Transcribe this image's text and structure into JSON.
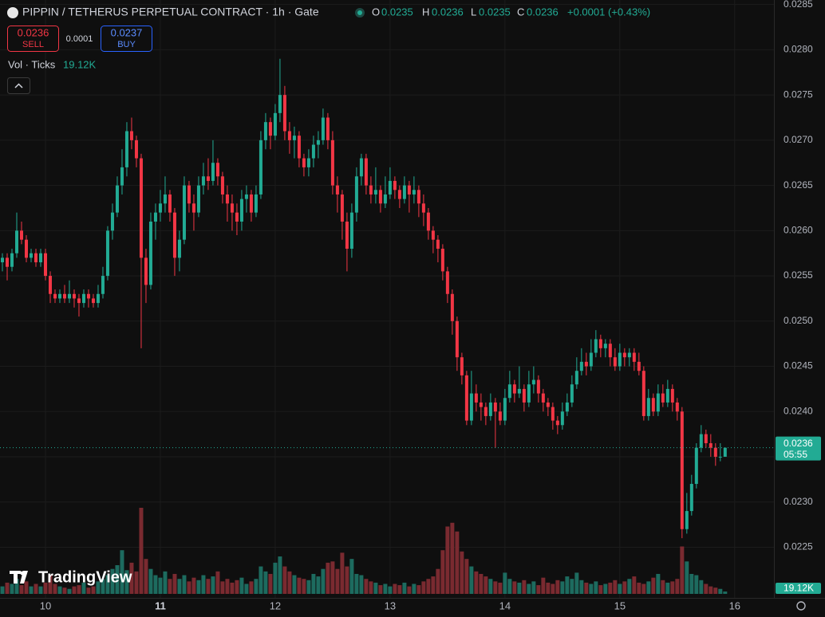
{
  "chart_data": {
    "type": "candlestick",
    "title": "PIPPIN / TETHERUS PERPETUAL CONTRACT · 1h · Gate",
    "header": {
      "o_label": "O",
      "open": "0.0235",
      "h_label": "H",
      "high": "0.0236",
      "l_label": "L",
      "low": "0.0235",
      "c_label": "C",
      "close": "0.0236",
      "change": "+0.0001 (+0.43%)"
    },
    "trade": {
      "sell_price": "0.0236",
      "sell": "SELL",
      "spread": "0.0001",
      "buy_price": "0.0237",
      "buy": "BUY"
    },
    "volume_legend": "Vol · Ticks",
    "volume_label": "19.12K",
    "price_label": "0.0236",
    "countdown": "05:55",
    "watermark": "TradingView",
    "up_color": "#22ab94",
    "down_color": "#f23645",
    "up_volume_color": "#1d6b5f",
    "down_volume_color": "#7a2a30",
    "grid": true,
    "xlim": [
      -0.5,
      161.2
    ],
    "xticks": [
      {
        "value": 9,
        "label": "10"
      },
      {
        "value": 33,
        "label": "11"
      },
      {
        "value": 57,
        "label": "12"
      },
      {
        "value": 81,
        "label": "13"
      },
      {
        "value": 105,
        "label": "14"
      },
      {
        "value": 129,
        "label": "15"
      },
      {
        "value": 153,
        "label": "16"
      }
    ],
    "ylim": [
      0.02194,
      0.02855
    ],
    "yticks": [
      0.0225,
      {
        "value": 0.023,
        "label": "0.0230"
      },
      0.0235,
      {
        "value": 0.024,
        "label": "0.0240"
      },
      0.0245,
      {
        "value": 0.025,
        "label": "0.0250"
      },
      0.0255,
      {
        "value": 0.026,
        "label": "0.0260"
      },
      0.0265,
      {
        "value": 0.027,
        "label": "0.0270"
      },
      0.0275,
      {
        "value": 0.028,
        "label": "0.0280"
      },
      0.0285
    ],
    "open": [
      0.02565,
      0.0257,
      0.0256,
      0.02575,
      0.026,
      0.0259,
      0.0257,
      0.02575,
      0.02565,
      0.02575,
      0.0255,
      0.0253,
      0.02525,
      0.0253,
      0.02525,
      0.0253,
      0.02525,
      0.0252,
      0.0253,
      0.02525,
      0.0252,
      0.0253,
      0.0255,
      0.026,
      0.0262,
      0.0265,
      0.0267,
      0.0271,
      0.027,
      0.0268,
      0.0257,
      0.0254,
      0.0261,
      0.0262,
      0.0263,
      0.0264,
      0.0262,
      0.0257,
      0.0259,
      0.0265,
      0.0263,
      0.0262,
      0.0265,
      0.0266,
      0.02655,
      0.02675,
      0.0266,
      0.0264,
      0.0263,
      0.0262,
      0.0261,
      0.02635,
      0.0264,
      0.0262,
      0.0264,
      0.027,
      0.0272,
      0.02705,
      0.0273,
      0.0275,
      0.0271,
      0.027,
      0.02705,
      0.0268,
      0.0267,
      0.0268,
      0.02695,
      0.027,
      0.02725,
      0.027,
      0.0265,
      0.0264,
      0.0261,
      0.0258,
      0.0262,
      0.0266,
      0.0268,
      0.0265,
      0.0264,
      0.02645,
      0.0263,
      0.0264,
      0.02655,
      0.02645,
      0.02635,
      0.0265,
      0.0264,
      0.02645,
      0.0263,
      0.0262,
      0.026,
      0.0259,
      0.0258,
      0.02555,
      0.0253,
      0.025,
      0.0246,
      0.0244,
      0.0239,
      0.0242,
      0.0241,
      0.02405,
      0.02395,
      0.0241,
      0.024,
      0.0239,
      0.02415,
      0.0243,
      0.0242,
      0.02425,
      0.0241,
      0.0243,
      0.02435,
      0.0242,
      0.0241,
      0.02405,
      0.0239,
      0.02385,
      0.024,
      0.0241,
      0.0243,
      0.02445,
      0.02455,
      0.0245,
      0.02465,
      0.0248,
      0.0247,
      0.02475,
      0.0246,
      0.0245,
      0.02465,
      0.0246,
      0.02465,
      0.02455,
      0.02445,
      0.02395,
      0.02415,
      0.024,
      0.0242,
      0.0241,
      0.02425,
      0.0241,
      0.024,
      0.0227,
      0.0229,
      0.0232,
      0.0236,
      0.02375,
      0.02365,
      0.0236,
      0.0235,
      0.0235
    ],
    "high": [
      0.02575,
      0.02575,
      0.0258,
      0.0262,
      0.0261,
      0.02595,
      0.0258,
      0.0258,
      0.0258,
      0.0258,
      0.02555,
      0.02535,
      0.02535,
      0.0254,
      0.02545,
      0.02535,
      0.0253,
      0.02535,
      0.02535,
      0.0253,
      0.0254,
      0.0256,
      0.02605,
      0.0263,
      0.0266,
      0.0269,
      0.0272,
      0.02725,
      0.02705,
      0.02685,
      0.0258,
      0.0262,
      0.0263,
      0.02645,
      0.0266,
      0.02645,
      0.02625,
      0.026,
      0.0266,
      0.02655,
      0.0264,
      0.0266,
      0.02675,
      0.0268,
      0.027,
      0.0268,
      0.02665,
      0.0265,
      0.0264,
      0.0263,
      0.02645,
      0.0265,
      0.02645,
      0.0265,
      0.0271,
      0.0273,
      0.02725,
      0.0274,
      0.0279,
      0.0276,
      0.0272,
      0.02715,
      0.0271,
      0.02685,
      0.0269,
      0.02705,
      0.0271,
      0.02735,
      0.0273,
      0.0271,
      0.0266,
      0.02645,
      0.0262,
      0.0263,
      0.0267,
      0.02685,
      0.02685,
      0.0266,
      0.0267,
      0.0265,
      0.0266,
      0.0267,
      0.0266,
      0.0265,
      0.0266,
      0.02655,
      0.0266,
      0.0265,
      0.0264,
      0.02625,
      0.02605,
      0.02595,
      0.02585,
      0.0256,
      0.02535,
      0.02505,
      0.02465,
      0.02445,
      0.02445,
      0.0243,
      0.0242,
      0.0241,
      0.0242,
      0.02415,
      0.0241,
      0.02425,
      0.02445,
      0.02435,
      0.0245,
      0.0243,
      0.02445,
      0.0245,
      0.0244,
      0.02425,
      0.02415,
      0.0241,
      0.02395,
      0.0241,
      0.0242,
      0.0244,
      0.0246,
      0.0247,
      0.02465,
      0.0248,
      0.0249,
      0.02485,
      0.0248,
      0.0248,
      0.0247,
      0.02475,
      0.0247,
      0.0247,
      0.0247,
      0.02465,
      0.0245,
      0.02425,
      0.0242,
      0.0243,
      0.0243,
      0.02435,
      0.0243,
      0.02415,
      0.02405,
      0.0231,
      0.0233,
      0.02365,
      0.02385,
      0.0238,
      0.02375,
      0.02365,
      0.02365,
      0.0236
    ],
    "low": [
      0.02555,
      0.02545,
      0.02555,
      0.0257,
      0.02585,
      0.02565,
      0.02565,
      0.0256,
      0.0256,
      0.02545,
      0.0252,
      0.0252,
      0.0252,
      0.0252,
      0.0252,
      0.02515,
      0.02505,
      0.02515,
      0.02515,
      0.02515,
      0.02515,
      0.02525,
      0.02545,
      0.0259,
      0.02615,
      0.0264,
      0.0266,
      0.0269,
      0.0267,
      0.0247,
      0.0252,
      0.02535,
      0.0259,
      0.0261,
      0.0262,
      0.0261,
      0.0255,
      0.02555,
      0.02585,
      0.0262,
      0.026,
      0.02615,
      0.0264,
      0.02645,
      0.0265,
      0.0265,
      0.0263,
      0.0261,
      0.026,
      0.02595,
      0.026,
      0.0262,
      0.0261,
      0.02615,
      0.02635,
      0.0269,
      0.0269,
      0.027,
      0.0272,
      0.027,
      0.02685,
      0.0268,
      0.0267,
      0.0266,
      0.0266,
      0.0267,
      0.0268,
      0.02695,
      0.0269,
      0.0264,
      0.0262,
      0.0259,
      0.02555,
      0.0257,
      0.0261,
      0.0265,
      0.0264,
      0.0263,
      0.0263,
      0.0262,
      0.02625,
      0.02635,
      0.02635,
      0.02625,
      0.0263,
      0.0262,
      0.0263,
      0.02615,
      0.02605,
      0.0259,
      0.02575,
      0.02565,
      0.02545,
      0.0252,
      0.02485,
      0.02445,
      0.0243,
      0.02385,
      0.02385,
      0.024,
      0.0239,
      0.02385,
      0.0239,
      0.0236,
      0.02385,
      0.02385,
      0.0241,
      0.0241,
      0.02415,
      0.024,
      0.02405,
      0.0242,
      0.0241,
      0.024,
      0.02395,
      0.0238,
      0.02375,
      0.0238,
      0.02395,
      0.02405,
      0.02425,
      0.0244,
      0.0244,
      0.02445,
      0.0246,
      0.0246,
      0.0246,
      0.0245,
      0.02445,
      0.02445,
      0.0245,
      0.0245,
      0.02445,
      0.0244,
      0.0239,
      0.0239,
      0.02395,
      0.02395,
      0.02405,
      0.02405,
      0.024,
      0.0239,
      0.0226,
      0.02265,
      0.02285,
      0.02315,
      0.02355,
      0.0236,
      0.0235,
      0.0234,
      0.02345,
      0.0235
    ],
    "close": [
      0.0257,
      0.0256,
      0.02575,
      0.026,
      0.0259,
      0.0257,
      0.02575,
      0.02565,
      0.02575,
      0.0255,
      0.0253,
      0.02525,
      0.0253,
      0.02525,
      0.0253,
      0.02525,
      0.0252,
      0.0253,
      0.02525,
      0.0252,
      0.0253,
      0.0255,
      0.026,
      0.0262,
      0.0265,
      0.0267,
      0.0271,
      0.027,
      0.0268,
      0.0257,
      0.0254,
      0.0261,
      0.0262,
      0.0263,
      0.0264,
      0.0262,
      0.0257,
      0.0259,
      0.0265,
      0.0263,
      0.0262,
      0.0265,
      0.0266,
      0.02655,
      0.02675,
      0.0266,
      0.0264,
      0.0263,
      0.0262,
      0.0261,
      0.02635,
      0.0264,
      0.0262,
      0.0264,
      0.027,
      0.0272,
      0.02705,
      0.0273,
      0.0275,
      0.0271,
      0.027,
      0.02705,
      0.0268,
      0.0267,
      0.0268,
      0.02695,
      0.027,
      0.02725,
      0.027,
      0.0265,
      0.0264,
      0.0261,
      0.0258,
      0.0262,
      0.0266,
      0.0268,
      0.0265,
      0.0264,
      0.02645,
      0.0263,
      0.0264,
      0.02655,
      0.02645,
      0.02635,
      0.0265,
      0.0264,
      0.02645,
      0.0263,
      0.0262,
      0.026,
      0.0259,
      0.0258,
      0.02555,
      0.0253,
      0.025,
      0.0246,
      0.0244,
      0.0239,
      0.0242,
      0.0241,
      0.02405,
      0.02395,
      0.0241,
      0.024,
      0.0239,
      0.02415,
      0.0243,
      0.0242,
      0.02425,
      0.0241,
      0.0243,
      0.02435,
      0.0242,
      0.0241,
      0.02405,
      0.0239,
      0.02385,
      0.024,
      0.0241,
      0.0243,
      0.02445,
      0.02455,
      0.0245,
      0.02465,
      0.0248,
      0.0247,
      0.02475,
      0.0246,
      0.0245,
      0.02465,
      0.0246,
      0.02465,
      0.02455,
      0.02445,
      0.02395,
      0.02415,
      0.024,
      0.0242,
      0.0241,
      0.02425,
      0.0241,
      0.024,
      0.0227,
      0.0229,
      0.0232,
      0.0236,
      0.02375,
      0.02365,
      0.0236,
      0.0235,
      0.0235,
      0.0236
    ],
    "volume": [
      60000,
      90000,
      80000,
      120000,
      70000,
      100000,
      60000,
      80000,
      60000,
      90000,
      150000,
      80000,
      60000,
      50000,
      40000,
      60000,
      70000,
      90000,
      50000,
      60000,
      100000,
      120000,
      150000,
      200000,
      230000,
      350000,
      190000,
      250000,
      180000,
      690000,
      280000,
      200000,
      150000,
      130000,
      180000,
      120000,
      160000,
      120000,
      150000,
      100000,
      130000,
      110000,
      150000,
      120000,
      140000,
      180000,
      100000,
      120000,
      90000,
      110000,
      130000,
      80000,
      100000,
      120000,
      220000,
      180000,
      160000,
      250000,
      300000,
      220000,
      180000,
      150000,
      130000,
      120000,
      110000,
      160000,
      140000,
      200000,
      250000,
      260000,
      200000,
      330000,
      220000,
      280000,
      160000,
      150000,
      120000,
      100000,
      90000,
      70000,
      80000,
      60000,
      80000,
      70000,
      90000,
      60000,
      80000,
      70000,
      100000,
      120000,
      140000,
      200000,
      350000,
      540000,
      570000,
      500000,
      340000,
      280000,
      220000,
      180000,
      160000,
      140000,
      120000,
      100000,
      90000,
      170000,
      120000,
      100000,
      90000,
      110000,
      80000,
      100000,
      70000,
      130000,
      90000,
      80000,
      110000,
      100000,
      140000,
      120000,
      170000,
      110000,
      90000,
      80000,
      100000,
      70000,
      80000,
      90000,
      110000,
      80000,
      100000,
      120000,
      140000,
      90000,
      80000,
      100000,
      130000,
      160000,
      110000,
      90000,
      100000,
      120000,
      380000,
      260000,
      160000,
      150000,
      110000,
      80000,
      60000,
      50000,
      40000,
      19120
    ]
  }
}
